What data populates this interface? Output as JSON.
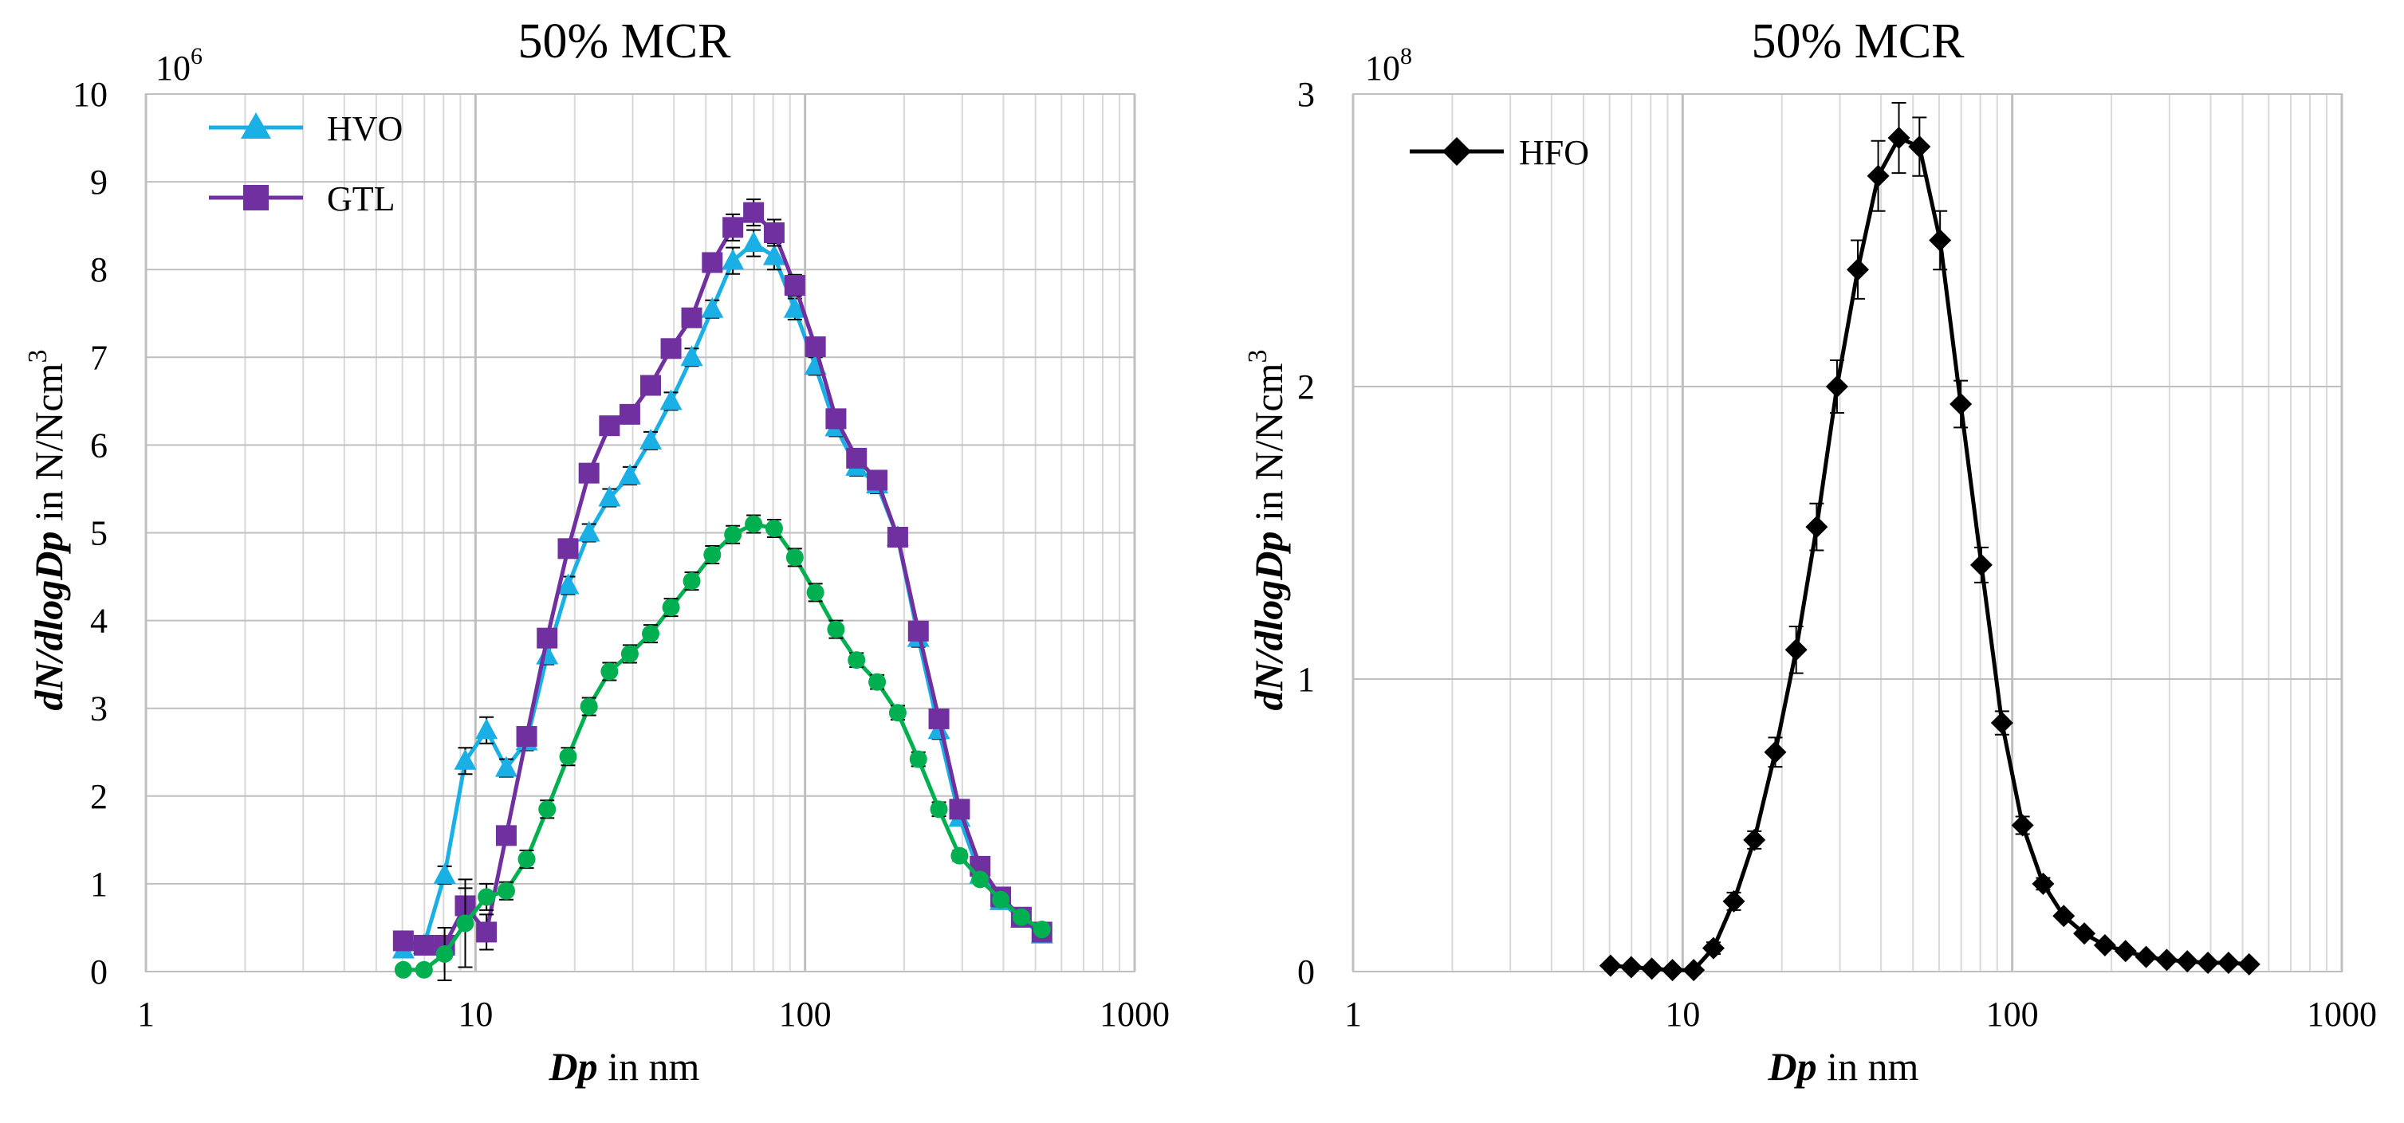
{
  "chart_data": [
    {
      "type": "line",
      "title": "50% MCR",
      "xscale": "log",
      "xlim": [
        1,
        1000
      ],
      "ylim": [
        0,
        10
      ],
      "xticks": [
        "1",
        "10",
        "100",
        "1000"
      ],
      "yticks": [
        "0",
        "1",
        "2",
        "3",
        "4",
        "5",
        "6",
        "7",
        "8",
        "9",
        "10"
      ],
      "multiplier": "10",
      "multiplier_exp": "6",
      "xlabel": {
        "var": "Dp",
        "rest": " in nm"
      },
      "ylabel": {
        "var": "dN/dlogDp",
        "rest": " in N/Ncm",
        "sup": "3"
      },
      "grid": true,
      "legend_position": "top-left",
      "series": [
        {
          "name": "HVO",
          "color": "#1ab0e6",
          "marker": "triangle",
          "x": [
            6.04,
            6.98,
            8.06,
            9.31,
            10.8,
            12.4,
            14.3,
            16.5,
            19.1,
            22.1,
            25.5,
            29.4,
            34.0,
            39.2,
            45.3,
            52.3,
            60.4,
            69.8,
            80.6,
            93.1,
            107.5,
            124.1,
            143.3,
            165.5,
            191.1,
            220.7,
            254.8,
            294.3,
            339.8,
            392.4,
            453.2,
            523.3
          ],
          "values": [
            0.25,
            0.3,
            1.1,
            2.4,
            2.75,
            2.32,
            2.62,
            3.6,
            4.4,
            5.0,
            5.4,
            5.65,
            6.05,
            6.5,
            7.0,
            7.55,
            8.1,
            8.3,
            8.15,
            7.55,
            6.9,
            6.2,
            5.75,
            5.55,
            4.95,
            3.8,
            2.75,
            1.75,
            1.1,
            0.8,
            0.6,
            0.42
          ],
          "errors": [
            0.05,
            0.05,
            0.1,
            0.15,
            0.15,
            0.1,
            0.1,
            0.1,
            0.1,
            0.1,
            0.1,
            0.1,
            0.1,
            0.1,
            0.1,
            0.1,
            0.15,
            0.15,
            0.15,
            0.12,
            0.1,
            0.1,
            0.1,
            0.1,
            0.1,
            0.1,
            0.1,
            0.08,
            0.06,
            0.05,
            0.04,
            0.03
          ]
        },
        {
          "name": "GTL",
          "color": "#7030a0",
          "marker": "square",
          "x": [
            6.04,
            6.98,
            8.06,
            9.31,
            10.8,
            12.4,
            14.3,
            16.5,
            19.1,
            22.1,
            25.5,
            29.4,
            34.0,
            39.2,
            45.3,
            52.3,
            60.4,
            69.8,
            80.6,
            93.1,
            107.5,
            124.1,
            143.3,
            165.5,
            191.1,
            220.7,
            254.8,
            294.3,
            339.8,
            392.4,
            453.2,
            523.3
          ],
          "values": [
            0.35,
            0.3,
            0.3,
            0.75,
            0.45,
            1.55,
            2.68,
            3.8,
            4.82,
            5.68,
            6.22,
            6.35,
            6.68,
            7.1,
            7.45,
            8.08,
            8.48,
            8.65,
            8.42,
            7.82,
            7.12,
            6.3,
            5.85,
            5.6,
            4.95,
            3.88,
            2.88,
            1.85,
            1.2,
            0.85,
            0.62,
            0.45
          ],
          "errors": [
            0.05,
            0.05,
            0.05,
            0.2,
            0.2,
            0.1,
            0.1,
            0.1,
            0.1,
            0.1,
            0.1,
            0.1,
            0.1,
            0.1,
            0.1,
            0.1,
            0.15,
            0.15,
            0.15,
            0.12,
            0.1,
            0.1,
            0.1,
            0.1,
            0.1,
            0.1,
            0.1,
            0.08,
            0.06,
            0.05,
            0.04,
            0.03
          ]
        },
        {
          "name": "",
          "color": "#00b050",
          "marker": "circle",
          "x": [
            6.04,
            6.98,
            8.06,
            9.31,
            10.8,
            12.4,
            14.3,
            16.5,
            19.1,
            22.1,
            25.5,
            29.4,
            34.0,
            39.2,
            45.3,
            52.3,
            60.4,
            69.8,
            80.6,
            93.1,
            107.5,
            124.1,
            143.3,
            165.5,
            191.1,
            220.7,
            254.8,
            294.3,
            339.8,
            392.4,
            453.2,
            523.3
          ],
          "values": [
            0.02,
            0.02,
            0.2,
            0.55,
            0.85,
            0.92,
            1.28,
            1.85,
            2.45,
            3.02,
            3.42,
            3.62,
            3.85,
            4.15,
            4.45,
            4.75,
            4.98,
            5.1,
            5.05,
            4.72,
            4.32,
            3.9,
            3.55,
            3.3,
            2.95,
            2.42,
            1.85,
            1.32,
            1.05,
            0.82,
            0.62,
            0.48
          ],
          "errors": [
            0.02,
            0.02,
            0.3,
            0.5,
            0.15,
            0.1,
            0.1,
            0.1,
            0.1,
            0.1,
            0.1,
            0.1,
            0.1,
            0.1,
            0.1,
            0.1,
            0.1,
            0.1,
            0.1,
            0.1,
            0.1,
            0.1,
            0.08,
            0.08,
            0.08,
            0.08,
            0.08,
            0.06,
            0.05,
            0.05,
            0.04,
            0.03
          ]
        }
      ]
    },
    {
      "type": "line",
      "title": "50% MCR",
      "xscale": "log",
      "xlim": [
        1,
        1000
      ],
      "ylim": [
        0,
        3
      ],
      "xticks": [
        "1",
        "10",
        "100",
        "1000"
      ],
      "yticks": [
        "0",
        "1",
        "2",
        "3"
      ],
      "multiplier": "10",
      "multiplier_exp": "8",
      "xlabel": {
        "var": "Dp",
        "rest": " in nm"
      },
      "ylabel": {
        "var": "dN/dlogDp",
        "rest": " in N/Ncm",
        "sup": "3"
      },
      "grid": true,
      "legend_position": "top-left",
      "series": [
        {
          "name": "HFO",
          "color": "#000000",
          "marker": "diamond",
          "x": [
            6.04,
            6.98,
            8.06,
            9.31,
            10.8,
            12.4,
            14.3,
            16.5,
            19.1,
            22.1,
            25.5,
            29.4,
            34.0,
            39.2,
            45.3,
            52.3,
            60.4,
            69.8,
            80.6,
            93.1,
            107.5,
            124.1,
            143.3,
            165.5,
            191.1,
            220.7,
            254.8,
            294.3,
            339.8,
            392.4,
            453.2,
            523.3
          ],
          "values": [
            0.02,
            0.015,
            0.01,
            0.005,
            0.005,
            0.08,
            0.24,
            0.45,
            0.75,
            1.1,
            1.52,
            2.0,
            2.4,
            2.72,
            2.85,
            2.82,
            2.5,
            1.94,
            1.39,
            0.85,
            0.5,
            0.3,
            0.19,
            0.13,
            0.09,
            0.07,
            0.05,
            0.04,
            0.035,
            0.03,
            0.03,
            0.025
          ],
          "errors": [
            0.005,
            0.005,
            0.005,
            0.005,
            0.005,
            0.02,
            0.03,
            0.03,
            0.05,
            0.08,
            0.08,
            0.09,
            0.1,
            0.12,
            0.12,
            0.1,
            0.1,
            0.08,
            0.06,
            0.04,
            0.03,
            0.02,
            0.01,
            0.01,
            0.01,
            0.01,
            0.01,
            0.01,
            0.005,
            0.005,
            0.005,
            0.005
          ]
        }
      ]
    }
  ]
}
